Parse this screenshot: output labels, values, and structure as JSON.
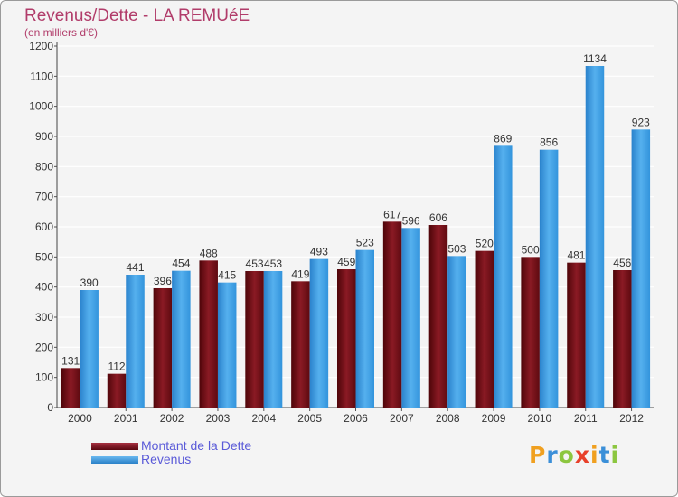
{
  "title": "Revenus/Dette - LA REMUéE",
  "subtitle": "(en milliers d'€)",
  "legend": [
    {
      "label": "Montant de la Dette",
      "color": "#6e0b12"
    },
    {
      "label": "Revenus",
      "color": "#3b9ae0"
    }
  ],
  "logo": {
    "letters": [
      "P",
      "r",
      "o",
      "x",
      "i",
      "t",
      "i"
    ],
    "colors": [
      "#f0a020",
      "#3b8fd8",
      "#8cc63f",
      "#e8402a",
      "#f0a020",
      "#3b8fd8",
      "#8cc63f"
    ]
  },
  "chart_data": {
    "type": "bar",
    "categories": [
      "2000",
      "2001",
      "2002",
      "2003",
      "2004",
      "2005",
      "2006",
      "2007",
      "2008",
      "2009",
      "2010",
      "2011",
      "2012"
    ],
    "series": [
      {
        "name": "Montant de la Dette",
        "color": "#6e0b12",
        "values": [
          131,
          112,
          396,
          488,
          453,
          419,
          459,
          617,
          606,
          520,
          500,
          481,
          456
        ]
      },
      {
        "name": "Revenus",
        "color": "#3b9ae0",
        "values": [
          390,
          441,
          454,
          415,
          453,
          493,
          523,
          596,
          503,
          869,
          856,
          1134,
          923
        ]
      }
    ],
    "yticks": [
      0,
      100,
      200,
      300,
      400,
      500,
      600,
      700,
      800,
      900,
      1000,
      1100,
      1200
    ],
    "ylim": [
      0,
      1200
    ],
    "grid": true,
    "legend_position": "bottom-left"
  }
}
